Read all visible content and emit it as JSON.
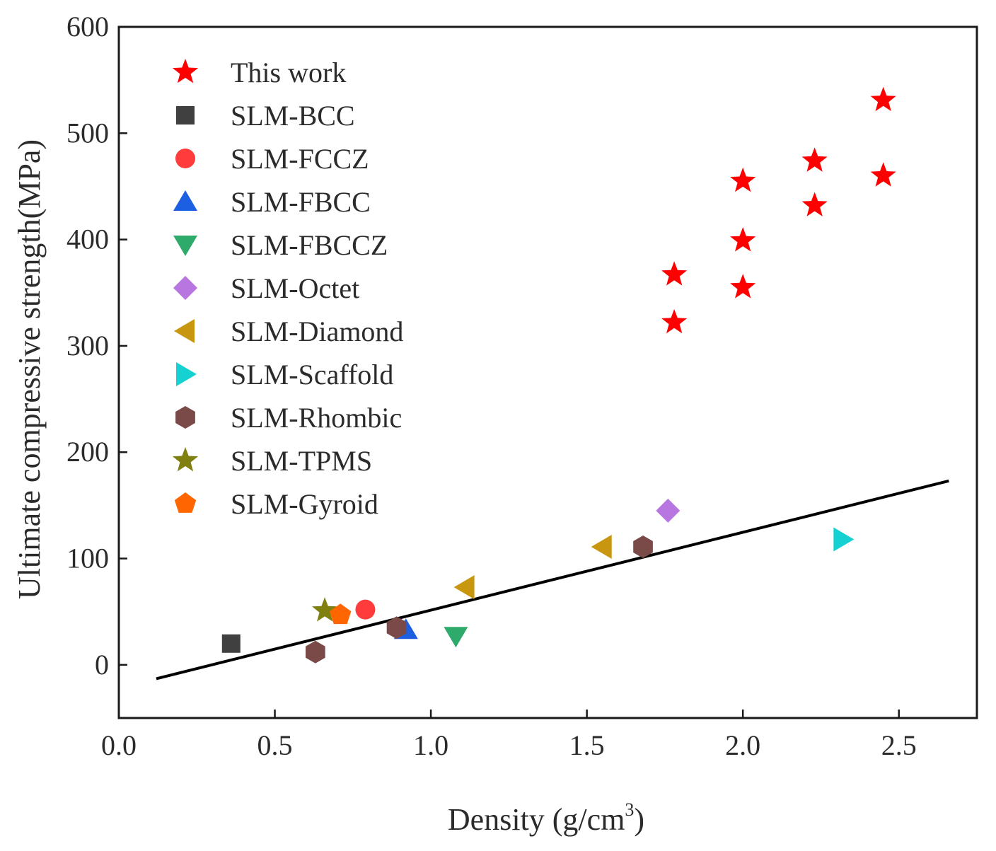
{
  "chart_data": {
    "type": "scatter",
    "xlabel": "Density (g/cm",
    "xlabel_sup": "3",
    "xlabel_end": ")",
    "ylabel": "Ultimate compressive strength(MPa)",
    "xlim": [
      0.0,
      2.75
    ],
    "ylim": [
      -50,
      600
    ],
    "xticks": [
      0.0,
      0.5,
      1.0,
      1.5,
      2.0,
      2.5
    ],
    "xtick_labels": [
      "0.0",
      "0.5",
      "1.0",
      "1.5",
      "2.0",
      "2.5"
    ],
    "yticks": [
      0,
      100,
      200,
      300,
      400,
      500,
      600
    ],
    "ytick_labels": [
      "0",
      "100",
      "200",
      "300",
      "400",
      "500",
      "600"
    ],
    "grid": false,
    "legend_position": "top-left",
    "series": [
      {
        "name": "This work",
        "marker": "star",
        "color": "#ff0000",
        "points": [
          [
            1.78,
            322
          ],
          [
            1.78,
            367
          ],
          [
            2.0,
            355
          ],
          [
            2.0,
            399
          ],
          [
            2.0,
            455
          ],
          [
            2.23,
            432
          ],
          [
            2.23,
            474
          ],
          [
            2.45,
            460
          ],
          [
            2.45,
            531
          ]
        ]
      },
      {
        "name": "SLM-BCC",
        "marker": "square",
        "color": "#404040",
        "points": [
          [
            0.36,
            20
          ]
        ]
      },
      {
        "name": "SLM-FCCZ",
        "marker": "circle",
        "color": "#ff3b3b",
        "points": [
          [
            0.79,
            52
          ]
        ]
      },
      {
        "name": "SLM-FBCC",
        "marker": "triangle-up",
        "color": "#1c5fe0",
        "points": [
          [
            0.92,
            33
          ]
        ]
      },
      {
        "name": "SLM-FBCCZ",
        "marker": "triangle-down",
        "color": "#2eaa6a",
        "points": [
          [
            1.08,
            27
          ]
        ]
      },
      {
        "name": "SLM-Octet",
        "marker": "diamond",
        "color": "#b877e0",
        "points": [
          [
            1.76,
            145
          ]
        ]
      },
      {
        "name": "SLM-Diamond",
        "marker": "triangle-left",
        "color": "#c9960f",
        "points": [
          [
            1.11,
            73
          ],
          [
            1.55,
            111
          ]
        ]
      },
      {
        "name": "SLM-Scaffold",
        "marker": "triangle-right",
        "color": "#15d1d1",
        "points": [
          [
            2.32,
            118
          ]
        ]
      },
      {
        "name": "SLM-Rhombic",
        "marker": "hexagon",
        "color": "#7a4a48",
        "points": [
          [
            0.63,
            12
          ],
          [
            0.89,
            35
          ],
          [
            1.68,
            111
          ]
        ]
      },
      {
        "name": "SLM-TPMS",
        "marker": "star",
        "color": "#808010",
        "points": [
          [
            0.66,
            51
          ]
        ]
      },
      {
        "name": "SLM-Gyroid",
        "marker": "pentagon",
        "color": "#ff6600",
        "points": [
          [
            0.71,
            47
          ]
        ]
      }
    ],
    "fit_line": {
      "color": "#000000",
      "x": [
        0.12,
        2.66
      ],
      "y": [
        -13,
        173
      ]
    }
  }
}
